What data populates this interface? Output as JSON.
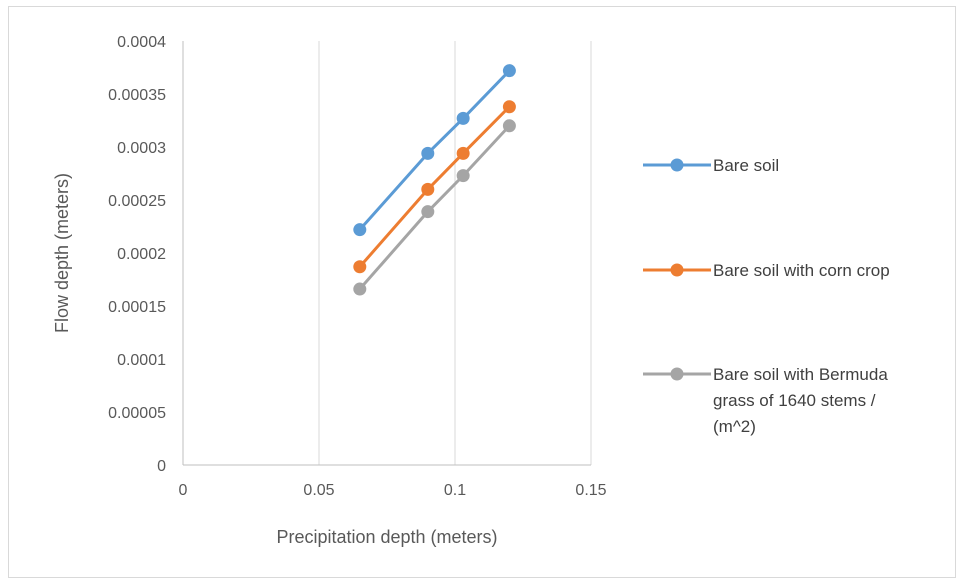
{
  "chart_data": {
    "type": "line",
    "title": "",
    "xlabel": "Precipitation depth (meters)",
    "ylabel": "Flow depth (meters)",
    "xlim": [
      0,
      0.15
    ],
    "ylim": [
      0,
      0.0004
    ],
    "x_ticks": [
      "0",
      "0.05",
      "0.1",
      "0.15"
    ],
    "y_ticks": [
      "0",
      "0.00005",
      "0.0001",
      "0.00015",
      "0.0002",
      "0.00025",
      "0.0003",
      "0.00035",
      "0.0004"
    ],
    "grid": "vertical",
    "legend_position": "right",
    "x": [
      0.065,
      0.09,
      0.103,
      0.12
    ],
    "series": [
      {
        "name": "Bare soil",
        "legend_lines": [
          "Bare soil"
        ],
        "color": "#5b9bd5",
        "values": [
          0.000222,
          0.000294,
          0.000327,
          0.000372
        ]
      },
      {
        "name": "Bare soil with corn crop",
        "legend_lines": [
          "Bare soil with corn crop"
        ],
        "color": "#ed7d31",
        "values": [
          0.000187,
          0.00026,
          0.000294,
          0.000338
        ]
      },
      {
        "name": "Bare soil with Bermuda grass of 1640 stems / (m^2)",
        "legend_lines": [
          "Bare soil with Bermuda",
          "grass of 1640 stems /",
          "(m^2)"
        ],
        "color": "#a5a5a5",
        "values": [
          0.000166,
          0.000239,
          0.000273,
          0.00032
        ]
      }
    ]
  }
}
